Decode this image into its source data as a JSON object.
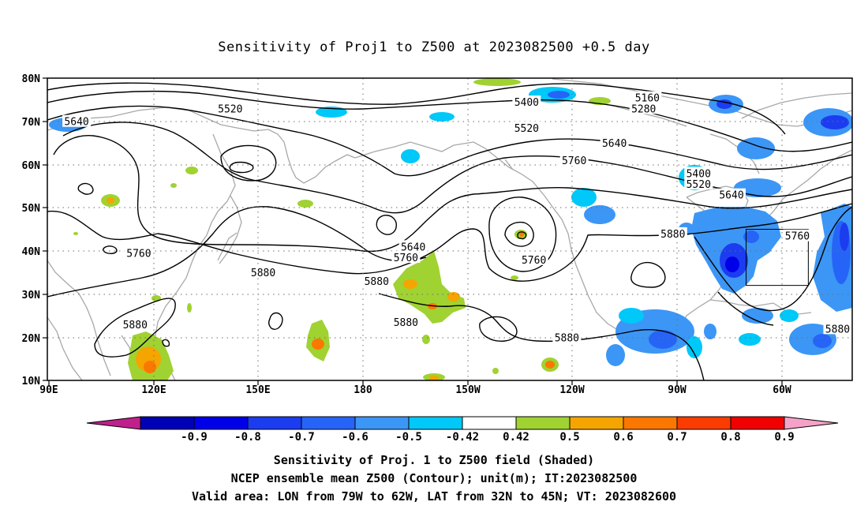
{
  "title": "Sensitivity of Proj1 to Z500 at 2023082500 +0.5 day",
  "map": {
    "lat_ticks": [
      "80N",
      "70N",
      "60N",
      "50N",
      "40N",
      "30N",
      "20N",
      "10N"
    ],
    "lon_ticks": [
      "90E",
      "120E",
      "150E",
      "180",
      "150W",
      "120W",
      "90W",
      "60W"
    ],
    "extent": {
      "lon_min_deg_east": 90,
      "lon_max_deg_east": 310,
      "lat_min": 10,
      "lat_max": 80
    },
    "grid": "dotted",
    "coastline_color": "#a8a8a8",
    "contour_color": "#000000",
    "contour_labels": [
      {
        "text": "5640",
        "lon": 98,
        "lat": 70
      },
      {
        "text": "5520",
        "lon": 140,
        "lat": 73
      },
      {
        "text": "5400",
        "lon": 221,
        "lat": 74.5
      },
      {
        "text": "5160",
        "lon": 254,
        "lat": 75.5
      },
      {
        "text": "5280",
        "lon": 253,
        "lat": 73
      },
      {
        "text": "5520",
        "lon": 221,
        "lat": 68.5
      },
      {
        "text": "5640",
        "lon": 245,
        "lat": 65
      },
      {
        "text": "5760",
        "lon": 234,
        "lat": 61
      },
      {
        "text": "5400",
        "lon": 268,
        "lat": 58
      },
      {
        "text": "5520",
        "lon": 268,
        "lat": 55.5
      },
      {
        "text": "5640",
        "lon": 277,
        "lat": 53
      },
      {
        "text": "5760",
        "lon": 295,
        "lat": 43.5
      },
      {
        "text": "5880",
        "lon": 261,
        "lat": 44
      },
      {
        "text": "5640",
        "lon": 190,
        "lat": 41
      },
      {
        "text": "5760",
        "lon": 188,
        "lat": 38.5
      },
      {
        "text": "5760",
        "lon": 223,
        "lat": 38
      },
      {
        "text": "5760",
        "lon": 115,
        "lat": 39.5
      },
      {
        "text": "5880",
        "lon": 149,
        "lat": 35
      },
      {
        "text": "5880",
        "lon": 180,
        "lat": 33
      },
      {
        "text": "5880",
        "lon": 188,
        "lat": 23.5
      },
      {
        "text": "5880",
        "lon": 232,
        "lat": 20
      },
      {
        "text": "5880",
        "lon": 306,
        "lat": 22
      },
      {
        "text": "5880",
        "lon": 114,
        "lat": 23
      }
    ],
    "valid_area": {
      "lon_west_deg": 79,
      "lon_east_deg": 62,
      "lat_south": 32,
      "lat_north": 45
    }
  },
  "colorbar": {
    "tick_labels": [
      "-0.9",
      "-0.8",
      "-0.7",
      "-0.6",
      "-0.5",
      "-0.42",
      "0.42",
      "0.5",
      "0.6",
      "0.7",
      "0.8",
      "0.9"
    ],
    "low_extend_color": "#c0208c",
    "high_extend_color": "#f6a2c8",
    "bin_colors": [
      "#0000b4",
      "#0000e8",
      "#1c3cf0",
      "#2664f8",
      "#3c96f5",
      "#00c8f8",
      "#ffffff",
      "#a0d232",
      "#f5a500",
      "#fa7800",
      "#fa3c00",
      "#f00000"
    ]
  },
  "captions": [
    "Sensitivity of Proj. 1 to Z500 field (Shaded)",
    "NCEP ensemble mean Z500 (Contour); unit(m); IT:2023082500",
    "Valid area: LON from 79W to 62W, LAT from 32N to 45N; VT: 2023082600"
  ]
}
